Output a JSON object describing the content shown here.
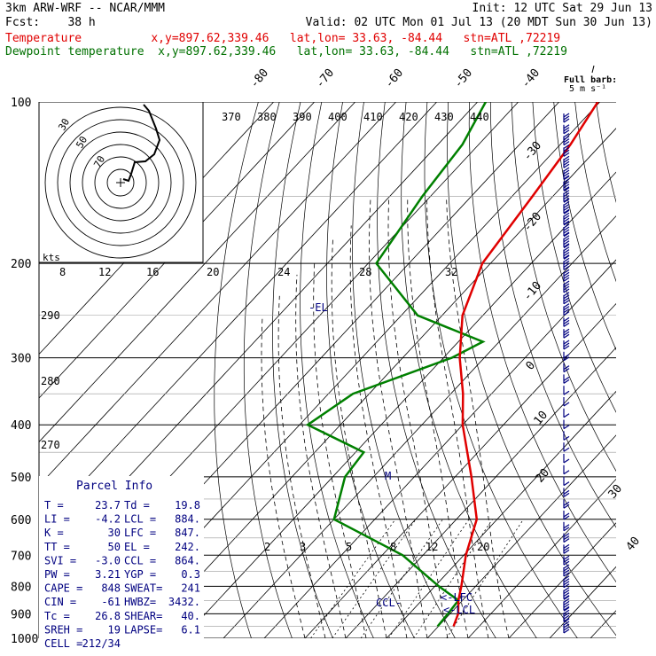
{
  "header": {
    "model": "3km ARW-WRF -- NCAR/MMM",
    "fcst_label": "Fcst:",
    "fcst_hours": "38 h",
    "init": "Init: 12 UTC Sat 29 Jun 13",
    "valid": "Valid: 02 UTC Mon 01 Jul 13 (20 MDT Sun 30 Jun 13)",
    "temp_line": "Temperature          x,y=897.62,339.46   lat,lon= 33.63, -84.44   stn=ATL ,72219",
    "dew_line": "Dewpoint temperature  x,y=897.62,339.46   lat,lon= 33.63, -84.44   stn=ATL ,72219"
  },
  "barb_legend": {
    "line1": "Full barb:",
    "line2": "5 m s⁻¹"
  },
  "colors": {
    "temperature": "#e00000",
    "dewpoint": "#008000",
    "grid": "#000000",
    "hodograph": "#000000",
    "parcel_text": "#000080",
    "wind_barbs": "#000080"
  },
  "chart_data": {
    "type": "skew-t",
    "pressure_levels": [
      100,
      200,
      300,
      400,
      500,
      600,
      700,
      800,
      900,
      1000
    ],
    "isotherm_labels": [
      "-80",
      "-70",
      "-60",
      "-50",
      "-40",
      "-30",
      "-20",
      "-10",
      "0",
      "10",
      "20",
      "30",
      "40"
    ],
    "theta_labels": [
      "370",
      "380",
      "390",
      "400",
      "410",
      "420",
      "430",
      "440"
    ],
    "theta_labels_left": [
      "290",
      "280",
      "270"
    ],
    "mixing_ratio_labels": [
      "2",
      "3",
      "5",
      "8",
      "12",
      "20"
    ],
    "hodograph": {
      "units_label": "kts",
      "ring_labels": [
        "30",
        "50",
        "70"
      ],
      "speed_labels": [
        "8",
        "12",
        "16",
        "20",
        "24",
        "28",
        "32"
      ]
    },
    "temperature_profile": [
      [
        100,
        -60.5
      ],
      [
        120,
        -57.5
      ],
      [
        150,
        -55
      ],
      [
        200,
        -52
      ],
      [
        250,
        -45
      ],
      [
        300,
        -36
      ],
      [
        350,
        -27
      ],
      [
        400,
        -20
      ],
      [
        500,
        -6
      ],
      [
        600,
        5
      ],
      [
        700,
        10.5
      ],
      [
        800,
        16.5
      ],
      [
        850,
        19
      ],
      [
        900,
        22
      ],
      [
        950,
        23.7
      ]
    ],
    "dewpoint_profile": [
      [
        100,
        -88
      ],
      [
        120,
        -84
      ],
      [
        150,
        -82
      ],
      [
        200,
        -78
      ],
      [
        250,
        -56
      ],
      [
        280,
        -34
      ],
      [
        300,
        -38
      ],
      [
        350,
        -54
      ],
      [
        400,
        -58
      ],
      [
        450,
        -38
      ],
      [
        500,
        -37
      ],
      [
        600,
        -30
      ],
      [
        700,
        -5
      ],
      [
        800,
        11
      ],
      [
        850,
        19
      ],
      [
        900,
        19.5
      ],
      [
        950,
        19.8
      ]
    ],
    "annotations": [
      "-EL",
      "M",
      "CCL",
      "LFC",
      "LCL"
    ],
    "parcel_info": {
      "title": "Parcel Info",
      "rows": [
        [
          "T   =",
          "23.7",
          "Td  =",
          "19.8"
        ],
        [
          "LI  =",
          "-4.2",
          "LCL =",
          "884."
        ],
        [
          "K   =",
          "30",
          "LFC =",
          "847."
        ],
        [
          "TT  =",
          "50",
          "EL  =",
          "242."
        ],
        [
          "SVI =",
          "-3.0",
          "CCL =",
          "864."
        ],
        [
          "PW  =",
          "3.21",
          "YGP =",
          "0.3"
        ],
        [
          "CAPE =",
          "848",
          "SWEAT=",
          "241"
        ],
        [
          "CIN  =",
          "-61",
          "HWBZ=",
          "3432."
        ],
        [
          "Tc  =",
          "26.8",
          "SHEAR=",
          "40."
        ],
        [
          "SREH =",
          "19",
          "LAPSE=",
          "6.1"
        ],
        [
          "CELL =",
          "212/34",
          "",
          ""
        ]
      ]
    }
  }
}
